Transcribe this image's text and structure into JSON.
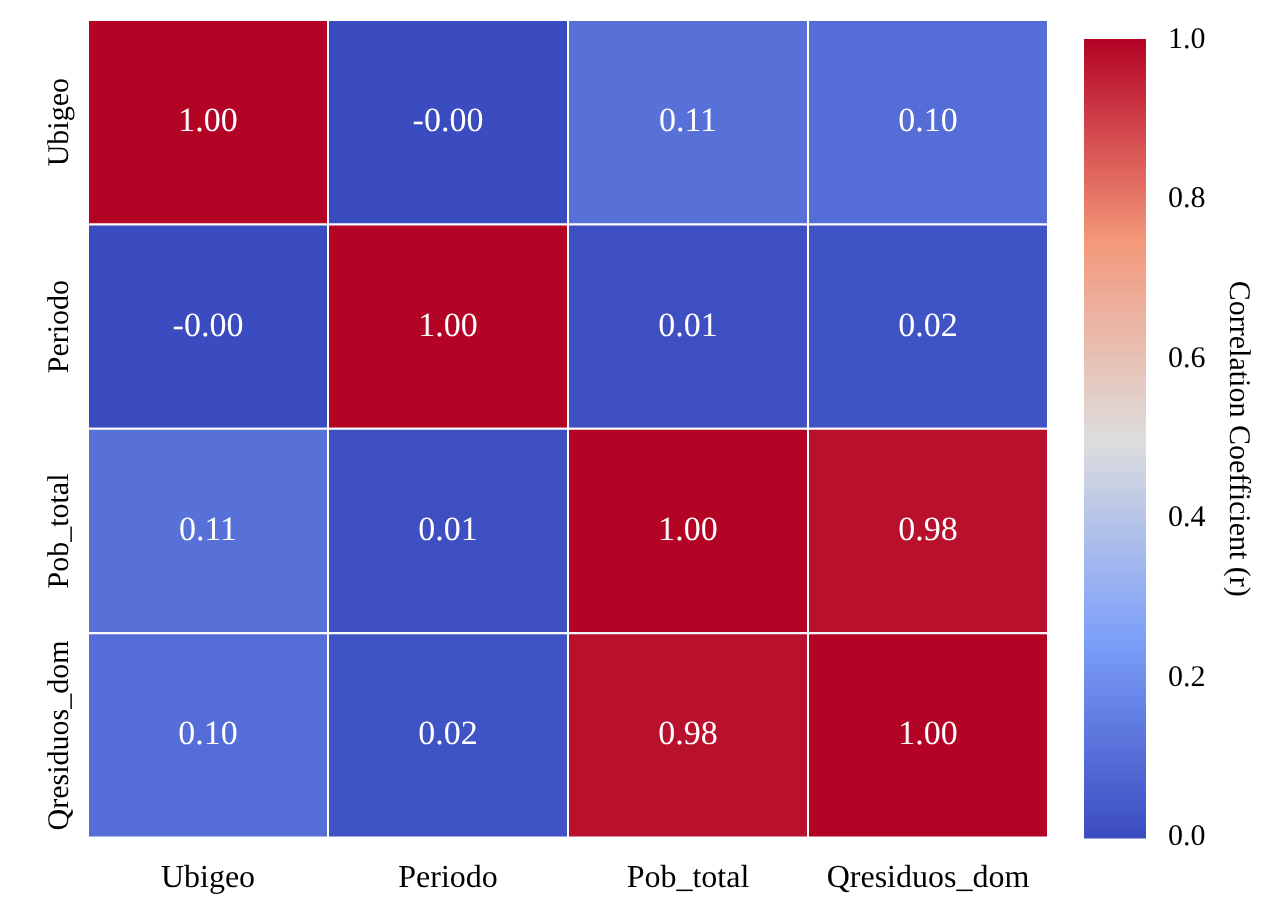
{
  "chart_data": {
    "type": "heatmap",
    "categories": [
      "Ubigeo",
      "Periodo",
      "Pob_total",
      "Qresiduos_dom"
    ],
    "y_categories": [
      "Ubigeo",
      "Periodo",
      "Pob_total",
      "Qresiduos_dom"
    ],
    "cells": [
      [
        1.0,
        -0.0,
        0.11,
        0.1
      ],
      [
        -0.0,
        1.0,
        0.01,
        0.02
      ],
      [
        0.11,
        0.01,
        1.0,
        0.98
      ],
      [
        0.1,
        0.02,
        0.98,
        1.0
      ]
    ],
    "cell_labels": [
      [
        "1.00",
        "-0.00",
        "0.11",
        "0.10"
      ],
      [
        "-0.00",
        "1.00",
        "0.01",
        "0.02"
      ],
      [
        "0.11",
        "0.01",
        "1.00",
        "0.98"
      ],
      [
        "0.10",
        "0.02",
        "0.98",
        "1.00"
      ]
    ],
    "clim": [
      0,
      1
    ],
    "cticks": [
      {
        "value": 0,
        "label": "0.0"
      },
      {
        "value": 0.2,
        "label": "0.2"
      },
      {
        "value": 0.4,
        "label": "0.4"
      },
      {
        "value": 0.6,
        "label": "0.6"
      },
      {
        "value": 0.8,
        "label": "0.8"
      },
      {
        "value": 1,
        "label": "1.0"
      }
    ],
    "clabel": "Correlation Coefficient (r)"
  }
}
